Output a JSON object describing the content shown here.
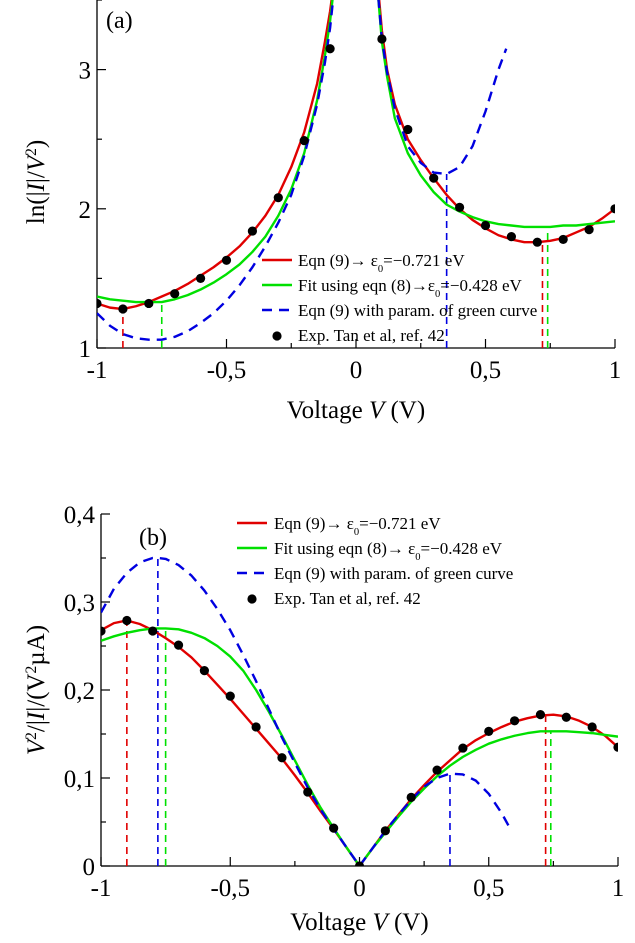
{
  "chart_data": [
    {
      "type": "line",
      "panel_label": "(a)",
      "xlabel": "Voltage V (V)",
      "xlabel_parts": [
        "Voltage ",
        "V",
        " (V)"
      ],
      "ylabel": "ln(|I|/V^2)",
      "ylabel_parts": [
        "ln(|",
        "I",
        "|/",
        "V",
        "2",
        ")"
      ],
      "xlim": [
        -1,
        1
      ],
      "ylim": [
        1,
        3.5
      ],
      "xticks": [
        {
          "value": -1,
          "label": "-1"
        },
        {
          "value": -0.5,
          "label": "-0,5"
        },
        {
          "value": 0,
          "label": "0"
        },
        {
          "value": 0.5,
          "label": "0,5"
        },
        {
          "value": 1,
          "label": "1"
        }
      ],
      "yticks": [
        {
          "value": 1,
          "label": "1"
        },
        {
          "value": 2,
          "label": "2"
        },
        {
          "value": 3,
          "label": "3"
        }
      ],
      "legend_position": "bottom-right",
      "series": [
        {
          "name": "Eqn (9)→ ε0=−0.721 eV",
          "legend_parts": [
            "Eqn (9)",
            "→",
            " ε",
            "0",
            "=−0.721 eV"
          ],
          "style": "solid",
          "color": "#e00000",
          "x": [
            -1.0,
            -0.95,
            -0.9,
            -0.85,
            -0.8,
            -0.75,
            -0.7,
            -0.65,
            -0.6,
            -0.55,
            -0.5,
            -0.45,
            -0.4,
            -0.35,
            -0.3,
            -0.25,
            -0.2,
            -0.15,
            -0.12,
            -0.1,
            -0.08,
            -0.06,
            0.06,
            0.08,
            0.1,
            0.12,
            0.15,
            0.2,
            0.25,
            0.3,
            0.35,
            0.4,
            0.45,
            0.5,
            0.55,
            0.6,
            0.65,
            0.7,
            0.75,
            0.8,
            0.85,
            0.9,
            0.95,
            1.0
          ],
          "y": [
            1.32,
            1.29,
            1.28,
            1.3,
            1.33,
            1.37,
            1.41,
            1.46,
            1.52,
            1.58,
            1.65,
            1.73,
            1.83,
            1.95,
            2.1,
            2.3,
            2.55,
            2.9,
            3.2,
            3.42,
            3.7,
            4.0,
            4.0,
            3.7,
            3.28,
            3.0,
            2.75,
            2.5,
            2.35,
            2.22,
            2.1,
            2.0,
            1.92,
            1.86,
            1.81,
            1.78,
            1.76,
            1.76,
            1.77,
            1.79,
            1.83,
            1.87,
            1.93,
            2.0
          ]
        },
        {
          "name": "Fit using eqn (8)→ε0=−0.428 eV",
          "legend_parts": [
            "Fit using eqn (8)",
            "→",
            "ε",
            "0",
            "=−0.428 eV"
          ],
          "style": "solid",
          "color": "#00e000",
          "x": [
            -1.0,
            -0.95,
            -0.9,
            -0.85,
            -0.8,
            -0.75,
            -0.7,
            -0.65,
            -0.6,
            -0.55,
            -0.5,
            -0.45,
            -0.4,
            -0.35,
            -0.3,
            -0.25,
            -0.2,
            -0.15,
            -0.12,
            -0.1,
            -0.08,
            -0.06,
            0.06,
            0.08,
            0.1,
            0.12,
            0.15,
            0.2,
            0.25,
            0.3,
            0.35,
            0.4,
            0.45,
            0.5,
            0.55,
            0.6,
            0.65,
            0.7,
            0.75,
            0.8,
            0.85,
            0.9,
            0.95,
            1.0
          ],
          "y": [
            1.37,
            1.35,
            1.34,
            1.33,
            1.33,
            1.33,
            1.35,
            1.38,
            1.42,
            1.47,
            1.53,
            1.6,
            1.69,
            1.8,
            1.95,
            2.14,
            2.4,
            2.78,
            3.1,
            3.35,
            3.68,
            4.0,
            4.0,
            3.65,
            3.2,
            2.95,
            2.65,
            2.4,
            2.24,
            2.12,
            2.03,
            1.98,
            1.94,
            1.91,
            1.89,
            1.88,
            1.87,
            1.87,
            1.87,
            1.88,
            1.88,
            1.89,
            1.9,
            1.91
          ]
        },
        {
          "name": "Eqn (9) with param. of green curve",
          "legend_parts": [
            "Eqn (9) with param. of green curve"
          ],
          "style": "dashed",
          "color": "#0000e0",
          "x": [
            -1.0,
            -0.95,
            -0.9,
            -0.85,
            -0.8,
            -0.75,
            -0.7,
            -0.65,
            -0.6,
            -0.55,
            -0.5,
            -0.45,
            -0.4,
            -0.35,
            -0.3,
            -0.25,
            -0.2,
            -0.15,
            -0.12,
            -0.1,
            -0.08,
            -0.06,
            0.06,
            0.08,
            0.1,
            0.12,
            0.15,
            0.2,
            0.25,
            0.3,
            0.35,
            0.4,
            0.45,
            0.5,
            0.55,
            0.58
          ],
          "y": [
            1.25,
            1.16,
            1.1,
            1.07,
            1.06,
            1.06,
            1.08,
            1.12,
            1.18,
            1.25,
            1.34,
            1.45,
            1.58,
            1.73,
            1.9,
            2.1,
            2.38,
            2.75,
            3.05,
            3.3,
            3.65,
            4.0,
            4.0,
            3.65,
            3.22,
            2.98,
            2.72,
            2.45,
            2.33,
            2.26,
            2.25,
            2.3,
            2.45,
            2.7,
            3.0,
            3.15
          ]
        },
        {
          "name": "Exp. Tan et al, ref. 42",
          "legend_parts": [
            "Exp. Tan et al, ref. 42"
          ],
          "style": "markers",
          "color": "#000000",
          "x": [
            -1.0,
            -0.9,
            -0.8,
            -0.7,
            -0.6,
            -0.5,
            -0.4,
            -0.3,
            -0.2,
            -0.1,
            0.1,
            0.2,
            0.3,
            0.4,
            0.5,
            0.6,
            0.7,
            0.8,
            0.9,
            1.0
          ],
          "y": [
            1.32,
            1.28,
            1.32,
            1.39,
            1.5,
            1.63,
            1.84,
            2.08,
            2.49,
            3.15,
            3.22,
            2.57,
            2.22,
            2.01,
            1.88,
            1.8,
            1.76,
            1.78,
            1.85,
            2.0
          ]
        }
      ],
      "markers": [
        {
          "x": -0.9,
          "y_from": 1,
          "y_to": 1.28,
          "color": "#e00000"
        },
        {
          "x": -0.75,
          "y_from": 1,
          "y_to": 1.33,
          "color": "#00e000"
        },
        {
          "x": 0.35,
          "y_from": 1,
          "y_to": 2.25,
          "color": "#0000e0"
        },
        {
          "x": 0.72,
          "y_from": 1,
          "y_to": 1.76,
          "color": "#e00000"
        },
        {
          "x": 0.74,
          "y_from": 1,
          "y_to": 1.87,
          "color": "#00e000"
        }
      ]
    },
    {
      "type": "line",
      "panel_label": "(b)",
      "xlabel": "Voltage V (V)",
      "xlabel_parts": [
        "Voltage ",
        "V",
        " (V)"
      ],
      "ylabel": "V^2/|I|/(V^2 µA)",
      "ylabel_parts": [
        "V",
        "2",
        "/|",
        "I",
        "|/(V",
        "2",
        "µA)"
      ],
      "xlim": [
        -1,
        1
      ],
      "ylim": [
        0,
        0.4
      ],
      "xticks": [
        {
          "value": -1,
          "label": "-1"
        },
        {
          "value": -0.5,
          "label": "-0,5"
        },
        {
          "value": 0,
          "label": "0"
        },
        {
          "value": 0.5,
          "label": "0,5"
        },
        {
          "value": 1,
          "label": "1"
        }
      ],
      "yticks": [
        {
          "value": 0,
          "label": "0"
        },
        {
          "value": 0.1,
          "label": "0,1"
        },
        {
          "value": 0.2,
          "label": "0,2"
        },
        {
          "value": 0.3,
          "label": "0,3"
        },
        {
          "value": 0.4,
          "label": "0,4"
        }
      ],
      "legend_position": "top-right",
      "series": [
        {
          "name": "Eqn (9)→ ε0=−0.721 eV",
          "legend_parts": [
            "Eqn (9)",
            "→",
            " ε",
            "0",
            "=−0.721 eV"
          ],
          "style": "solid",
          "color": "#e00000",
          "x": [
            -1.0,
            -0.95,
            -0.9,
            -0.85,
            -0.8,
            -0.75,
            -0.7,
            -0.65,
            -0.6,
            -0.55,
            -0.5,
            -0.45,
            -0.4,
            -0.35,
            -0.3,
            -0.25,
            -0.2,
            -0.15,
            -0.1,
            -0.05,
            0.0,
            0.05,
            0.1,
            0.15,
            0.2,
            0.25,
            0.3,
            0.35,
            0.4,
            0.45,
            0.5,
            0.55,
            0.6,
            0.65,
            0.7,
            0.75,
            0.8,
            0.85,
            0.9,
            0.95,
            1.0
          ],
          "y": [
            0.268,
            0.276,
            0.279,
            0.275,
            0.268,
            0.259,
            0.249,
            0.237,
            0.222,
            0.206,
            0.19,
            0.173,
            0.156,
            0.139,
            0.122,
            0.103,
            0.083,
            0.062,
            0.042,
            0.021,
            0.0,
            0.02,
            0.04,
            0.058,
            0.076,
            0.092,
            0.107,
            0.12,
            0.133,
            0.143,
            0.151,
            0.158,
            0.164,
            0.168,
            0.171,
            0.172,
            0.17,
            0.165,
            0.158,
            0.148,
            0.135
          ]
        },
        {
          "name": "Fit using eqn (8)→ ε0=−0.428 eV",
          "legend_parts": [
            "Fit using eqn (8)",
            "→",
            " ε",
            "0",
            "=−0.428 eV"
          ],
          "style": "solid",
          "color": "#00e000",
          "x": [
            -1.0,
            -0.95,
            -0.9,
            -0.85,
            -0.8,
            -0.75,
            -0.7,
            -0.65,
            -0.6,
            -0.55,
            -0.5,
            -0.45,
            -0.4,
            -0.35,
            -0.3,
            -0.25,
            -0.2,
            -0.15,
            -0.1,
            -0.05,
            0.0,
            0.05,
            0.1,
            0.15,
            0.2,
            0.25,
            0.3,
            0.35,
            0.4,
            0.45,
            0.5,
            0.55,
            0.6,
            0.65,
            0.7,
            0.75,
            0.8,
            0.85,
            0.9,
            0.95,
            1.0
          ],
          "y": [
            0.256,
            0.261,
            0.265,
            0.268,
            0.27,
            0.27,
            0.269,
            0.265,
            0.259,
            0.25,
            0.238,
            0.222,
            0.2,
            0.175,
            0.148,
            0.12,
            0.092,
            0.066,
            0.043,
            0.021,
            0.0,
            0.02,
            0.038,
            0.056,
            0.073,
            0.088,
            0.102,
            0.114,
            0.124,
            0.132,
            0.139,
            0.144,
            0.148,
            0.151,
            0.153,
            0.153,
            0.153,
            0.152,
            0.151,
            0.149,
            0.147
          ]
        },
        {
          "name": "Eqn (9) with param. of green curve",
          "legend_parts": [
            "Eqn (9) with param. of green curve"
          ],
          "style": "dashed",
          "color": "#0000e0",
          "x": [
            -1.0,
            -0.95,
            -0.9,
            -0.85,
            -0.8,
            -0.78,
            -0.75,
            -0.7,
            -0.65,
            -0.6,
            -0.55,
            -0.5,
            -0.45,
            -0.4,
            -0.35,
            -0.3,
            -0.25,
            -0.2,
            -0.15,
            -0.1,
            -0.05,
            0.0,
            0.05,
            0.1,
            0.15,
            0.2,
            0.25,
            0.3,
            0.35,
            0.4,
            0.45,
            0.5,
            0.55,
            0.58
          ],
          "y": [
            0.288,
            0.315,
            0.333,
            0.345,
            0.35,
            0.35,
            0.349,
            0.342,
            0.33,
            0.313,
            0.292,
            0.268,
            0.24,
            0.21,
            0.178,
            0.146,
            0.117,
            0.089,
            0.064,
            0.042,
            0.021,
            0.0,
            0.02,
            0.04,
            0.058,
            0.075,
            0.09,
            0.1,
            0.105,
            0.104,
            0.097,
            0.082,
            0.06,
            0.044
          ]
        },
        {
          "name": "Exp. Tan et al, ref. 42",
          "legend_parts": [
            "Exp. Tan et al, ref. 42"
          ],
          "style": "markers",
          "color": "#000000",
          "x": [
            -1.0,
            -0.9,
            -0.8,
            -0.7,
            -0.6,
            -0.5,
            -0.4,
            -0.3,
            -0.2,
            -0.1,
            0.0,
            0.1,
            0.2,
            0.3,
            0.4,
            0.5,
            0.6,
            0.7,
            0.8,
            0.9,
            1.0
          ],
          "y": [
            0.267,
            0.279,
            0.267,
            0.251,
            0.222,
            0.193,
            0.158,
            0.123,
            0.084,
            0.043,
            0.0,
            0.04,
            0.078,
            0.109,
            0.134,
            0.153,
            0.165,
            0.172,
            0.169,
            0.158,
            0.135
          ]
        }
      ],
      "markers": [
        {
          "x": -0.9,
          "y_from": 0,
          "y_to": 0.279,
          "color": "#e00000"
        },
        {
          "x": -0.78,
          "y_from": 0,
          "y_to": 0.35,
          "color": "#0000e0"
        },
        {
          "x": -0.75,
          "y_from": 0,
          "y_to": 0.27,
          "color": "#00e000"
        },
        {
          "x": 0.35,
          "y_from": 0,
          "y_to": 0.105,
          "color": "#0000e0"
        },
        {
          "x": 0.72,
          "y_from": 0,
          "y_to": 0.171,
          "color": "#e00000"
        },
        {
          "x": 0.74,
          "y_from": 0,
          "y_to": 0.153,
          "color": "#00e000"
        }
      ]
    }
  ]
}
